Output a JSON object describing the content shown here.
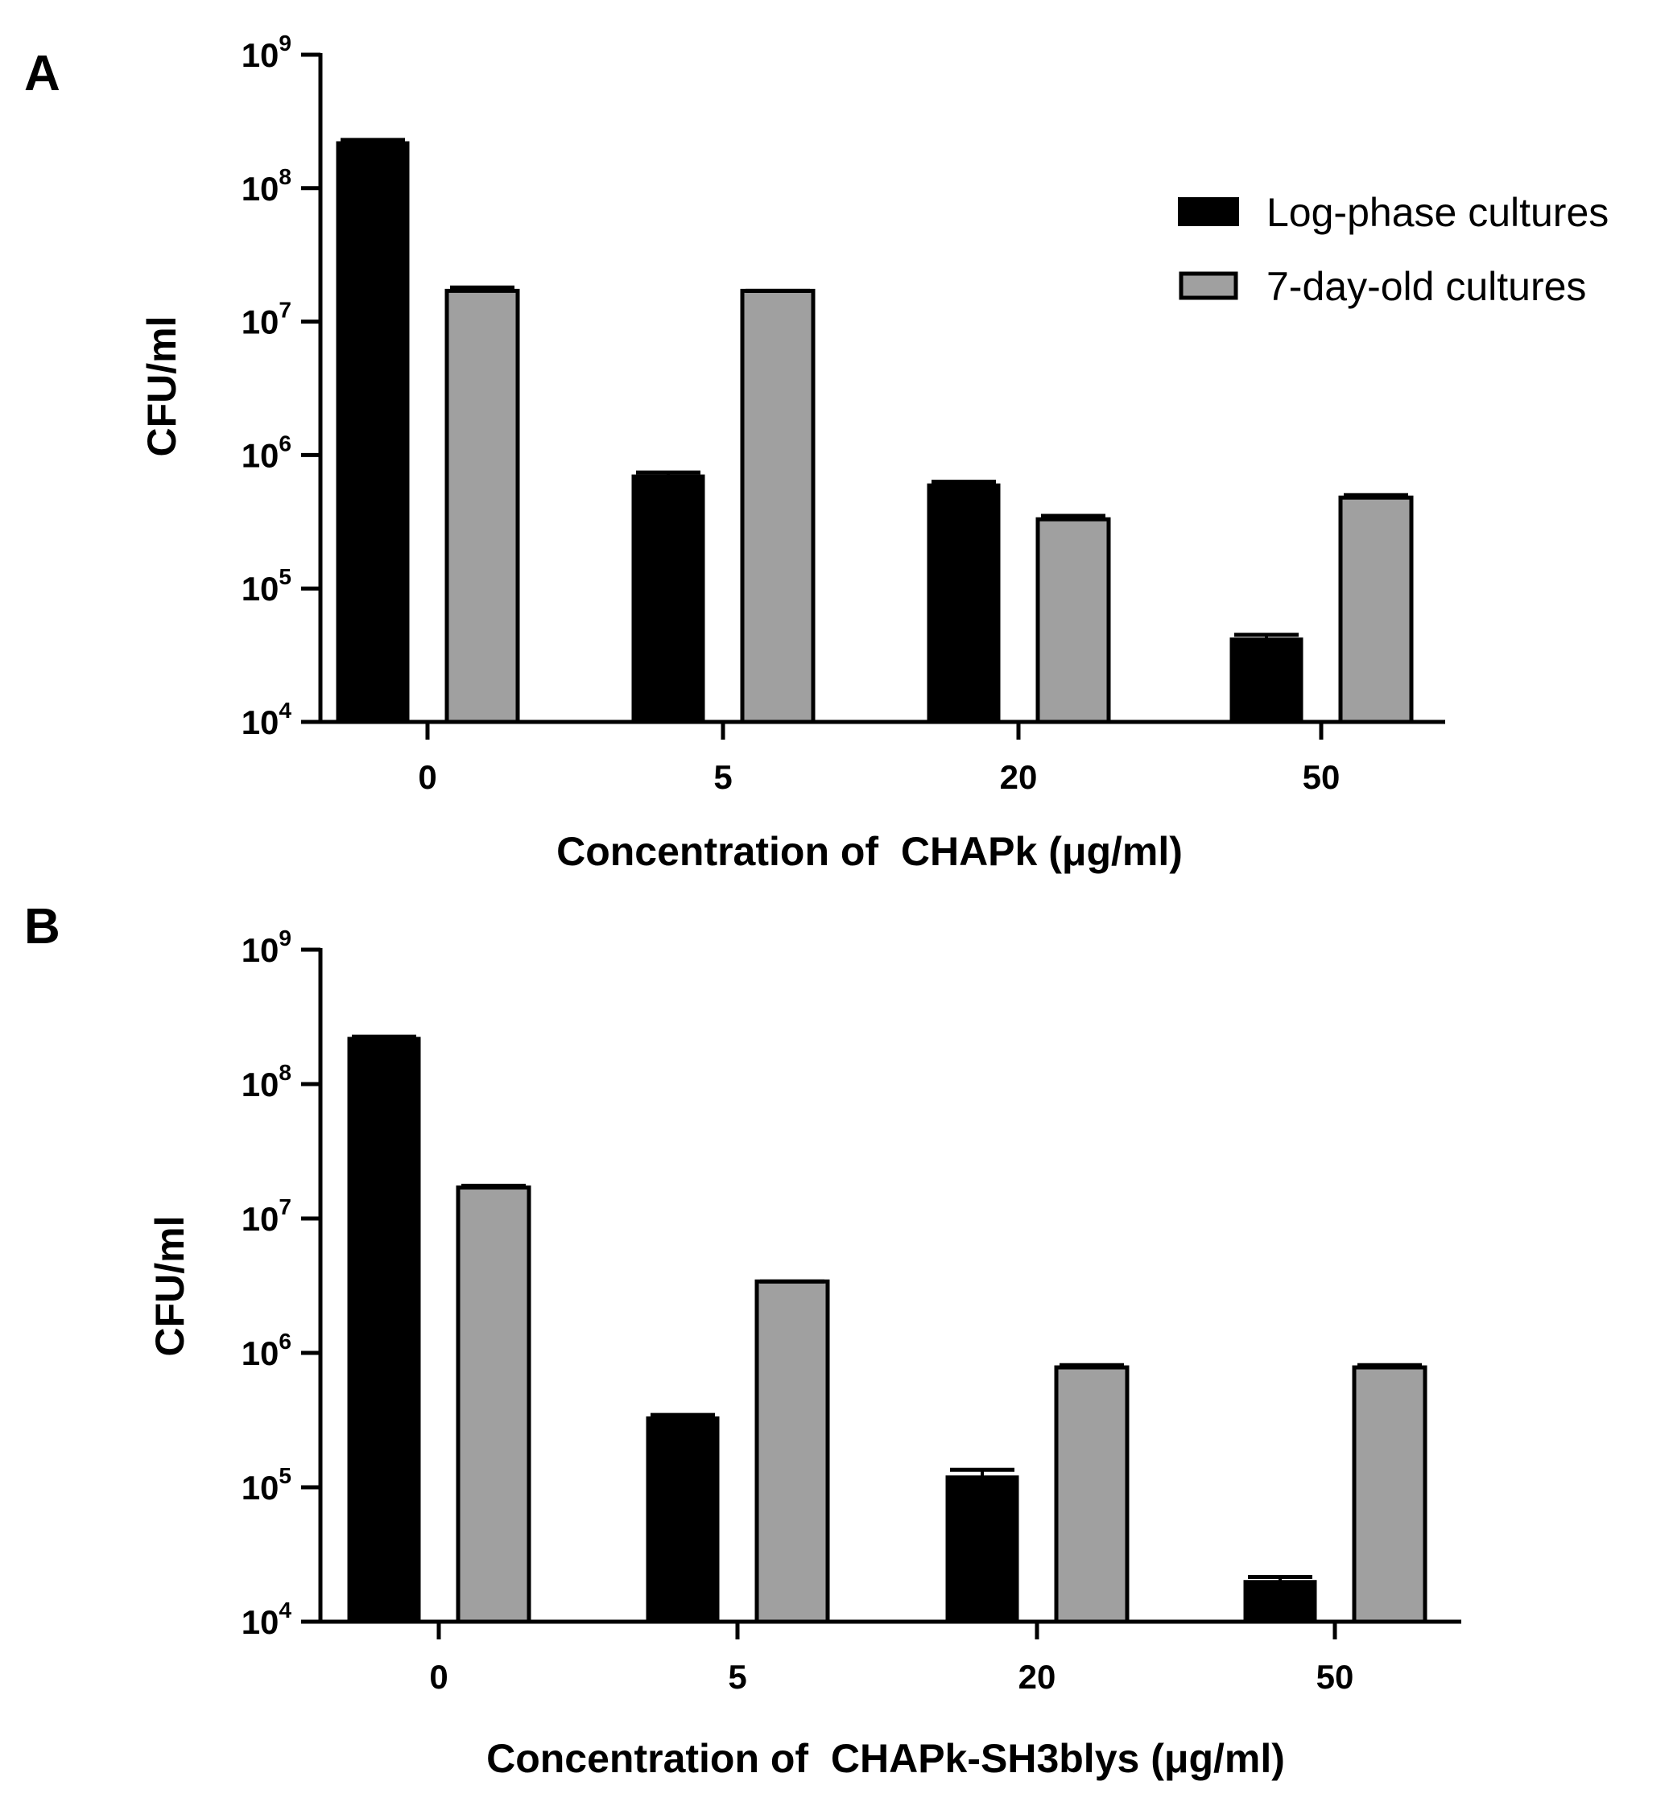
{
  "chart_data": [
    {
      "panel": "A",
      "type": "bar",
      "scale": "log",
      "categories": [
        "0",
        "5",
        "20",
        "50"
      ],
      "xlabel": "Concentration of  CHAPk (μg/ml)",
      "ylabel": "CFU/ml",
      "ylim": [
        10000,
        1000000000
      ],
      "yticks": [
        {
          "base": "10",
          "exp": "4",
          "value": 10000
        },
        {
          "base": "10",
          "exp": "5",
          "value": 100000
        },
        {
          "base": "10",
          "exp": "6",
          "value": 1000000
        },
        {
          "base": "10",
          "exp": "7",
          "value": 10000000
        },
        {
          "base": "10",
          "exp": "8",
          "value": 100000000
        },
        {
          "base": "10",
          "exp": "9",
          "value": 1000000000
        }
      ],
      "series": [
        {
          "name": "Log-phase cultures",
          "color": "#000000",
          "values": [
            220000000,
            700000,
            600000,
            42000
          ],
          "errors": [
            10000000,
            40000,
            30000,
            3000
          ]
        },
        {
          "name": "7-day-old cultures",
          "color": "#a0a0a0",
          "values": [
            17000000,
            17000000,
            330000,
            480000
          ],
          "errors": [
            1000000,
            0,
            20000,
            20000
          ]
        }
      ],
      "legend": "top-right"
    },
    {
      "panel": "B",
      "type": "bar",
      "scale": "log",
      "categories": [
        "0",
        "5",
        "20",
        "50"
      ],
      "xlabel": "Concentration of  CHAPk-SH3blys (μg/ml)",
      "ylabel": "CFU/ml",
      "ylim": [
        10000,
        1000000000
      ],
      "yticks": [
        {
          "base": "10",
          "exp": "4",
          "value": 10000
        },
        {
          "base": "10",
          "exp": "5",
          "value": 100000
        },
        {
          "base": "10",
          "exp": "6",
          "value": 1000000
        },
        {
          "base": "10",
          "exp": "7",
          "value": 10000000
        },
        {
          "base": "10",
          "exp": "8",
          "value": 100000000
        },
        {
          "base": "10",
          "exp": "9",
          "value": 1000000000
        }
      ],
      "series": [
        {
          "name": "Log-phase cultures",
          "color": "#000000",
          "values": [
            220000000,
            330000,
            120000,
            20000
          ],
          "errors": [
            5000000,
            15000,
            15000,
            1500
          ]
        },
        {
          "name": "7-day-old cultures",
          "color": "#a0a0a0",
          "values": [
            17000000,
            3400000,
            780000,
            780000
          ],
          "errors": [
            500000,
            0,
            30000,
            30000
          ]
        }
      ],
      "legend": "none"
    }
  ]
}
